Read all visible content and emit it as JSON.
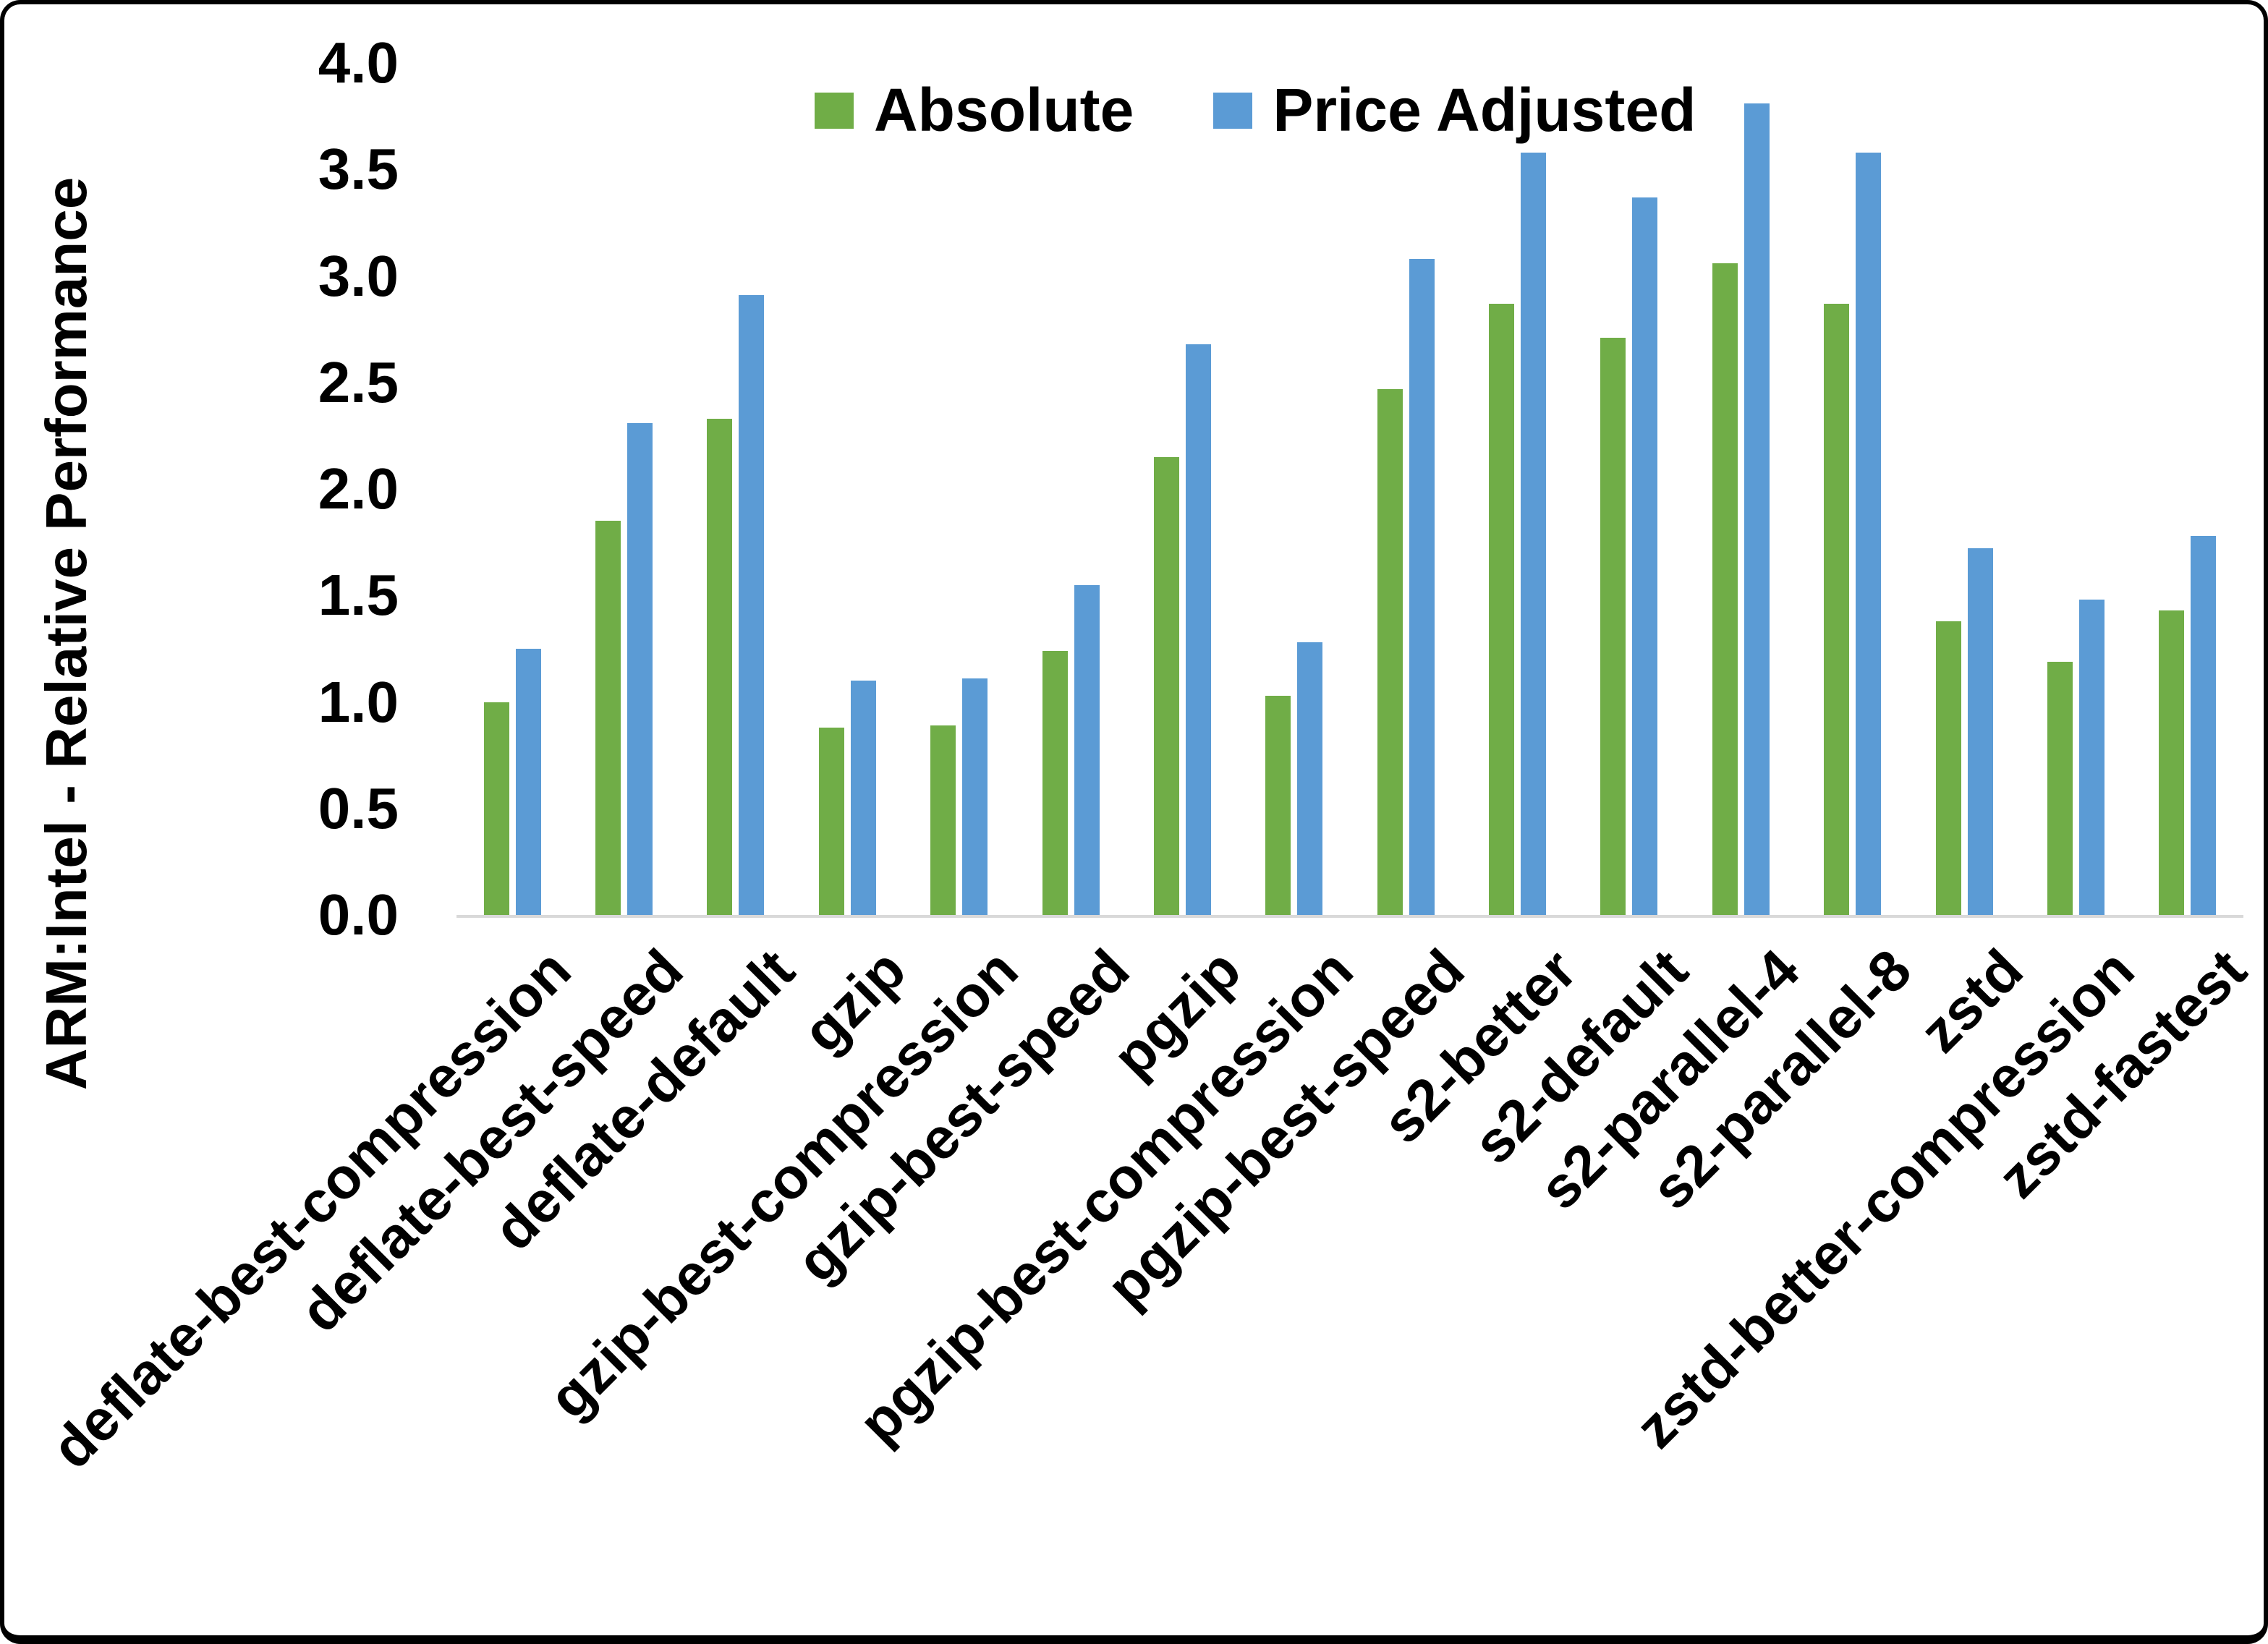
{
  "figure": {
    "background_color": "#FFFFFF",
    "frame_color": "#000000",
    "axis_line_color": "#D9D9D9"
  },
  "chart_data": {
    "type": "bar",
    "title": "",
    "xlabel": "",
    "ylabel": "ARM:Intel - Relative Performance",
    "ylim": [
      0,
      4
    ],
    "ytick_step": 0.5,
    "ytick_labels": [
      "0.0",
      "0.5",
      "1.0",
      "1.5",
      "2.0",
      "2.5",
      "3.0",
      "3.5",
      "4.0"
    ],
    "grid": false,
    "legend_position": "top-center",
    "categories": [
      "deflate-best-compression",
      "deflate-best-speed",
      "deflate-default",
      "gzip",
      "gzip-best-compression",
      "gzip-best-speed",
      "pgzip",
      "pgzip-best-compression",
      "pgzip-best-speed",
      "s2-better",
      "s2-default",
      "s2-parallel-4",
      "s2-parallel-8",
      "zstd",
      "zstd-better-compression",
      "zstd-fastest"
    ],
    "series": [
      {
        "name": "Absolute",
        "color": "#70AD47",
        "values": [
          1.0,
          1.85,
          2.33,
          0.88,
          0.89,
          1.24,
          2.15,
          1.03,
          2.47,
          2.87,
          2.71,
          3.06,
          2.87,
          1.38,
          1.19,
          1.43
        ]
      },
      {
        "name": "Price Adjusted",
        "color": "#5B9BD5",
        "values": [
          1.25,
          2.31,
          2.91,
          1.1,
          1.11,
          1.55,
          2.68,
          1.28,
          3.08,
          3.58,
          3.37,
          3.81,
          3.58,
          1.72,
          1.48,
          1.78
        ]
      }
    ]
  }
}
